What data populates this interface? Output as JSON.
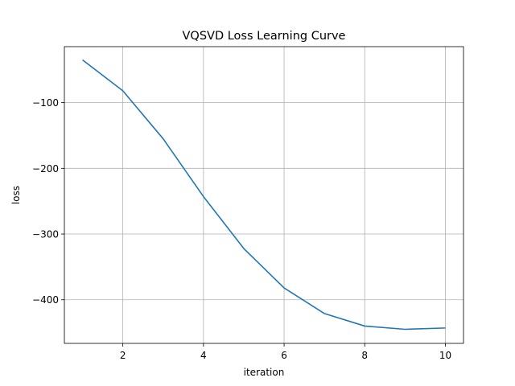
{
  "chart_data": {
    "type": "line",
    "title": "VQSVD Loss Learning Curve",
    "xlabel": "iteration",
    "ylabel": "loss",
    "xlim": [
      0.55,
      10.45
    ],
    "ylim": [
      -466.4,
      -14.8
    ],
    "grid": true,
    "x_ticks": [
      2,
      4,
      6,
      8,
      10
    ],
    "x_tick_labels": [
      "2",
      "4",
      "6",
      "8",
      "10"
    ],
    "y_ticks": [
      -400,
      -300,
      -200,
      -100
    ],
    "y_tick_labels": [
      "−400",
      "−300",
      "−200",
      "−100"
    ],
    "series": [
      {
        "color": "#1f77b4",
        "x": [
          1,
          2,
          3,
          4,
          5,
          6,
          7,
          8,
          9,
          10
        ],
        "y": [
          -35,
          -82,
          -155,
          -243,
          -322,
          -382,
          -421,
          -440,
          -445,
          -443
        ]
      }
    ]
  }
}
